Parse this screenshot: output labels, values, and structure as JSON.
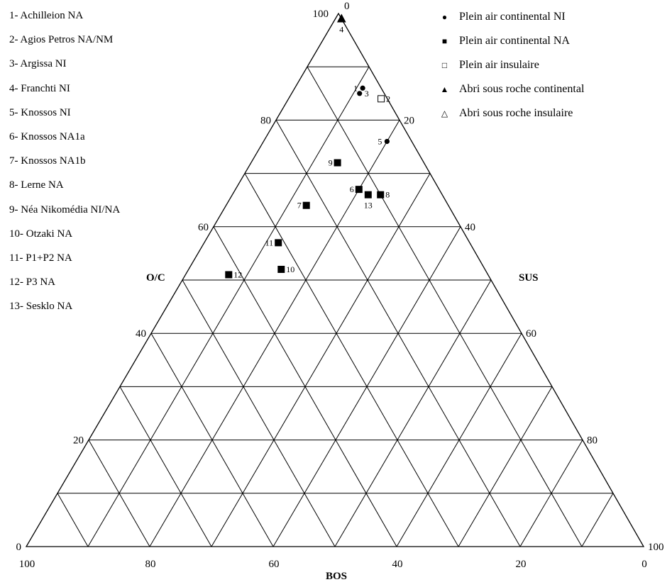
{
  "sites": [
    "1- Achilleion NA",
    "2- Agios Petros NA/NM",
    "3- Argissa NI",
    "4- Franchti NI",
    "5- Knossos NI",
    "6- Knossos NA1a",
    "7- Knossos NA1b",
    "8- Lerne NA",
    "9- Néa Nikomédia NI/NA",
    "10- Otzaki NA",
    "11- P1+P2 NA",
    "12- P3 NA",
    "13- Sesklo NA"
  ],
  "legend": [
    {
      "label": "Plein air continental NI",
      "symbol": "●",
      "shape": "filled-circle"
    },
    {
      "label": "Plein air continental NA",
      "symbol": "■",
      "shape": "filled-square"
    },
    {
      "label": "Plein air insulaire",
      "symbol": "□",
      "shape": "open-square"
    },
    {
      "label": "Abri sous roche continental",
      "symbol": "▲",
      "shape": "filled-triangle"
    },
    {
      "label": "Abri sous roche insulaire",
      "symbol": "△",
      "shape": "open-triangle"
    }
  ],
  "chart_data": {
    "type": "scatter",
    "subtype": "ternary",
    "title": "",
    "axes": {
      "left": {
        "label": "O/C",
        "ticks": [
          "0",
          "20",
          "40",
          "60",
          "80",
          "100"
        ],
        "range": [
          0,
          100
        ]
      },
      "right": {
        "label": "SUS",
        "ticks": [
          "0",
          "20",
          "40",
          "60",
          "80",
          "100"
        ],
        "range": [
          0,
          100
        ]
      },
      "bottom": {
        "label": "BOS",
        "ticks": [
          "100",
          "80",
          "60",
          "40",
          "20",
          "0"
        ],
        "range": [
          0,
          100
        ]
      }
    },
    "grid_step": 10,
    "grid": true,
    "points": [
      {
        "label": "1",
        "oc": 86,
        "sus": 11,
        "bos": 3,
        "shape": "filled-circle",
        "label_side": "left"
      },
      {
        "label": "2",
        "oc": 84,
        "sus": 15,
        "bos": 1,
        "shape": "open-square",
        "label_side": "right"
      },
      {
        "label": "3",
        "oc": 85,
        "sus": 11,
        "bos": 4,
        "shape": "filled-circle",
        "label_side": "right"
      },
      {
        "label": "4",
        "oc": 99,
        "sus": 1,
        "bos": 0,
        "shape": "filled-triangle",
        "label_side": "below"
      },
      {
        "label": "5",
        "oc": 76,
        "sus": 20,
        "bos": 4,
        "shape": "filled-circle",
        "label_side": "left"
      },
      {
        "label": "6",
        "oc": 67,
        "sus": 20,
        "bos": 13,
        "shape": "filled-square",
        "label_side": "left"
      },
      {
        "label": "7",
        "oc": 64,
        "sus": 13,
        "bos": 23,
        "shape": "filled-square",
        "label_side": "left"
      },
      {
        "label": "8",
        "oc": 66,
        "sus": 24,
        "bos": 10,
        "shape": "filled-square",
        "label_side": "right"
      },
      {
        "label": "9",
        "oc": 72,
        "sus": 14,
        "bos": 14,
        "shape": "filled-square",
        "label_side": "left"
      },
      {
        "label": "10",
        "oc": 52,
        "sus": 15,
        "bos": 33,
        "shape": "filled-square",
        "label_side": "right"
      },
      {
        "label": "11",
        "oc": 57,
        "sus": 12,
        "bos": 31,
        "shape": "filled-square",
        "label_side": "left"
      },
      {
        "label": "12",
        "oc": 51,
        "sus": 7,
        "bos": 42,
        "shape": "filled-square",
        "label_side": "right"
      },
      {
        "label": "13",
        "oc": 66,
        "sus": 22,
        "bos": 12,
        "shape": "filled-square",
        "label_side": "below"
      }
    ]
  }
}
